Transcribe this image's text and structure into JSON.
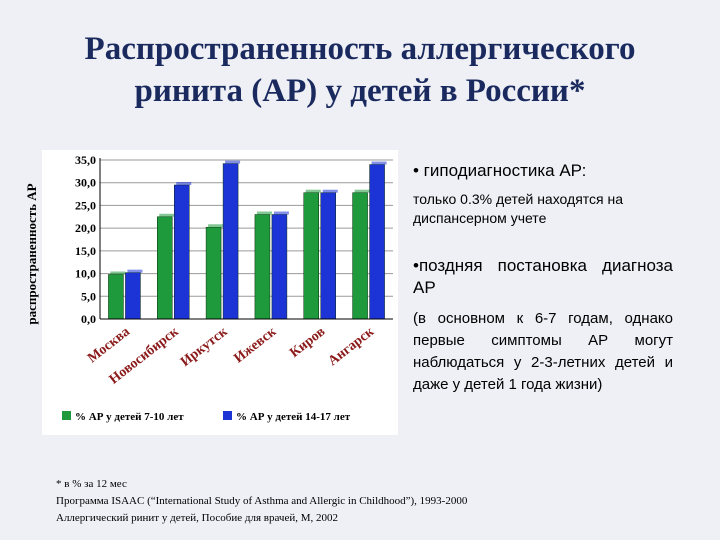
{
  "slide": {
    "title_line1": "Распространенность аллергического",
    "title_line2": "ринита (АР)  у детей в России*",
    "side_label": "распространенность АР"
  },
  "chart_data": {
    "type": "bar",
    "categories": [
      "Москва",
      "Новосибирск",
      "Иркутск",
      "Ижевск",
      "Киров",
      "Ангарск"
    ],
    "series": [
      {
        "name": "% АР у детей 7-10 лет",
        "values": [
          9.8,
          22.5,
          20.2,
          23.0,
          27.8,
          27.8
        ],
        "color": "#1e9a3c"
      },
      {
        "name": "% АР у детей 14-17 лет",
        "values": [
          10.2,
          29.5,
          34.2,
          23.0,
          27.8,
          34.0
        ],
        "color": "#1c33d6"
      }
    ],
    "ylim": [
      0,
      35
    ],
    "yticks": [
      "0,0",
      "5,0",
      "10,0",
      "15,0",
      "20,0",
      "25,0",
      "30,0",
      "35,0"
    ],
    "grid": true,
    "legend_position": "bottom"
  },
  "notes": {
    "b1_head": "• гиподиагностика  АР:",
    "b1_text": "только 0.3% детей находятся на диспансерном учете",
    "b2_head": "•поздняя    постановка диагноза АР",
    "b2_text": "(в основном к 6-7 годам, однако первые симптомы АР могут наблюдаться у 2-3-летних детей и даже у детей 1 года жизни)"
  },
  "footnotes": {
    "f1": "* в % за 12 мес",
    "f2": "Программа ISAAC (“International Study of Asthma and Allergic in Childhood”), 1993-2000",
    "f3": "Аллергический ринит у детей, Пособие для врачей, М, 2002"
  }
}
